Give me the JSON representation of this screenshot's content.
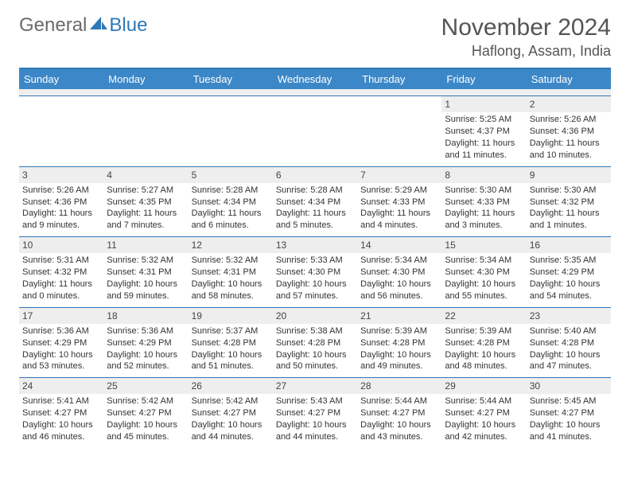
{
  "brand": {
    "part1": "General",
    "part2": "Blue"
  },
  "title": "November 2024",
  "location": "Haflong, Assam, India",
  "colors": {
    "header_bg": "#3c87c7",
    "header_border": "#2f78b7",
    "daynum_bg": "#eeeeee",
    "text": "#333333"
  },
  "daysOfWeek": [
    "Sunday",
    "Monday",
    "Tuesday",
    "Wednesday",
    "Thursday",
    "Friday",
    "Saturday"
  ],
  "weeks": [
    [
      {
        "blank": true
      },
      {
        "blank": true
      },
      {
        "blank": true
      },
      {
        "blank": true
      },
      {
        "blank": true
      },
      {
        "n": "1",
        "sunrise": "5:25 AM",
        "sunset": "4:37 PM",
        "dlh": 11,
        "dlm": 11
      },
      {
        "n": "2",
        "sunrise": "5:26 AM",
        "sunset": "4:36 PM",
        "dlh": 11,
        "dlm": 10
      }
    ],
    [
      {
        "n": "3",
        "sunrise": "5:26 AM",
        "sunset": "4:36 PM",
        "dlh": 11,
        "dlm": 9
      },
      {
        "n": "4",
        "sunrise": "5:27 AM",
        "sunset": "4:35 PM",
        "dlh": 11,
        "dlm": 7
      },
      {
        "n": "5",
        "sunrise": "5:28 AM",
        "sunset": "4:34 PM",
        "dlh": 11,
        "dlm": 6
      },
      {
        "n": "6",
        "sunrise": "5:28 AM",
        "sunset": "4:34 PM",
        "dlh": 11,
        "dlm": 5
      },
      {
        "n": "7",
        "sunrise": "5:29 AM",
        "sunset": "4:33 PM",
        "dlh": 11,
        "dlm": 4
      },
      {
        "n": "8",
        "sunrise": "5:30 AM",
        "sunset": "4:33 PM",
        "dlh": 11,
        "dlm": 3
      },
      {
        "n": "9",
        "sunrise": "5:30 AM",
        "sunset": "4:32 PM",
        "dlh": 11,
        "dlm": 1
      }
    ],
    [
      {
        "n": "10",
        "sunrise": "5:31 AM",
        "sunset": "4:32 PM",
        "dlh": 11,
        "dlm": 0
      },
      {
        "n": "11",
        "sunrise": "5:32 AM",
        "sunset": "4:31 PM",
        "dlh": 10,
        "dlm": 59
      },
      {
        "n": "12",
        "sunrise": "5:32 AM",
        "sunset": "4:31 PM",
        "dlh": 10,
        "dlm": 58
      },
      {
        "n": "13",
        "sunrise": "5:33 AM",
        "sunset": "4:30 PM",
        "dlh": 10,
        "dlm": 57
      },
      {
        "n": "14",
        "sunrise": "5:34 AM",
        "sunset": "4:30 PM",
        "dlh": 10,
        "dlm": 56
      },
      {
        "n": "15",
        "sunrise": "5:34 AM",
        "sunset": "4:30 PM",
        "dlh": 10,
        "dlm": 55
      },
      {
        "n": "16",
        "sunrise": "5:35 AM",
        "sunset": "4:29 PM",
        "dlh": 10,
        "dlm": 54
      }
    ],
    [
      {
        "n": "17",
        "sunrise": "5:36 AM",
        "sunset": "4:29 PM",
        "dlh": 10,
        "dlm": 53
      },
      {
        "n": "18",
        "sunrise": "5:36 AM",
        "sunset": "4:29 PM",
        "dlh": 10,
        "dlm": 52
      },
      {
        "n": "19",
        "sunrise": "5:37 AM",
        "sunset": "4:28 PM",
        "dlh": 10,
        "dlm": 51
      },
      {
        "n": "20",
        "sunrise": "5:38 AM",
        "sunset": "4:28 PM",
        "dlh": 10,
        "dlm": 50
      },
      {
        "n": "21",
        "sunrise": "5:39 AM",
        "sunset": "4:28 PM",
        "dlh": 10,
        "dlm": 49
      },
      {
        "n": "22",
        "sunrise": "5:39 AM",
        "sunset": "4:28 PM",
        "dlh": 10,
        "dlm": 48
      },
      {
        "n": "23",
        "sunrise": "5:40 AM",
        "sunset": "4:28 PM",
        "dlh": 10,
        "dlm": 47
      }
    ],
    [
      {
        "n": "24",
        "sunrise": "5:41 AM",
        "sunset": "4:27 PM",
        "dlh": 10,
        "dlm": 46
      },
      {
        "n": "25",
        "sunrise": "5:42 AM",
        "sunset": "4:27 PM",
        "dlh": 10,
        "dlm": 45
      },
      {
        "n": "26",
        "sunrise": "5:42 AM",
        "sunset": "4:27 PM",
        "dlh": 10,
        "dlm": 44
      },
      {
        "n": "27",
        "sunrise": "5:43 AM",
        "sunset": "4:27 PM",
        "dlh": 10,
        "dlm": 44
      },
      {
        "n": "28",
        "sunrise": "5:44 AM",
        "sunset": "4:27 PM",
        "dlh": 10,
        "dlm": 43
      },
      {
        "n": "29",
        "sunrise": "5:44 AM",
        "sunset": "4:27 PM",
        "dlh": 10,
        "dlm": 42
      },
      {
        "n": "30",
        "sunrise": "5:45 AM",
        "sunset": "4:27 PM",
        "dlh": 10,
        "dlm": 41
      }
    ]
  ]
}
